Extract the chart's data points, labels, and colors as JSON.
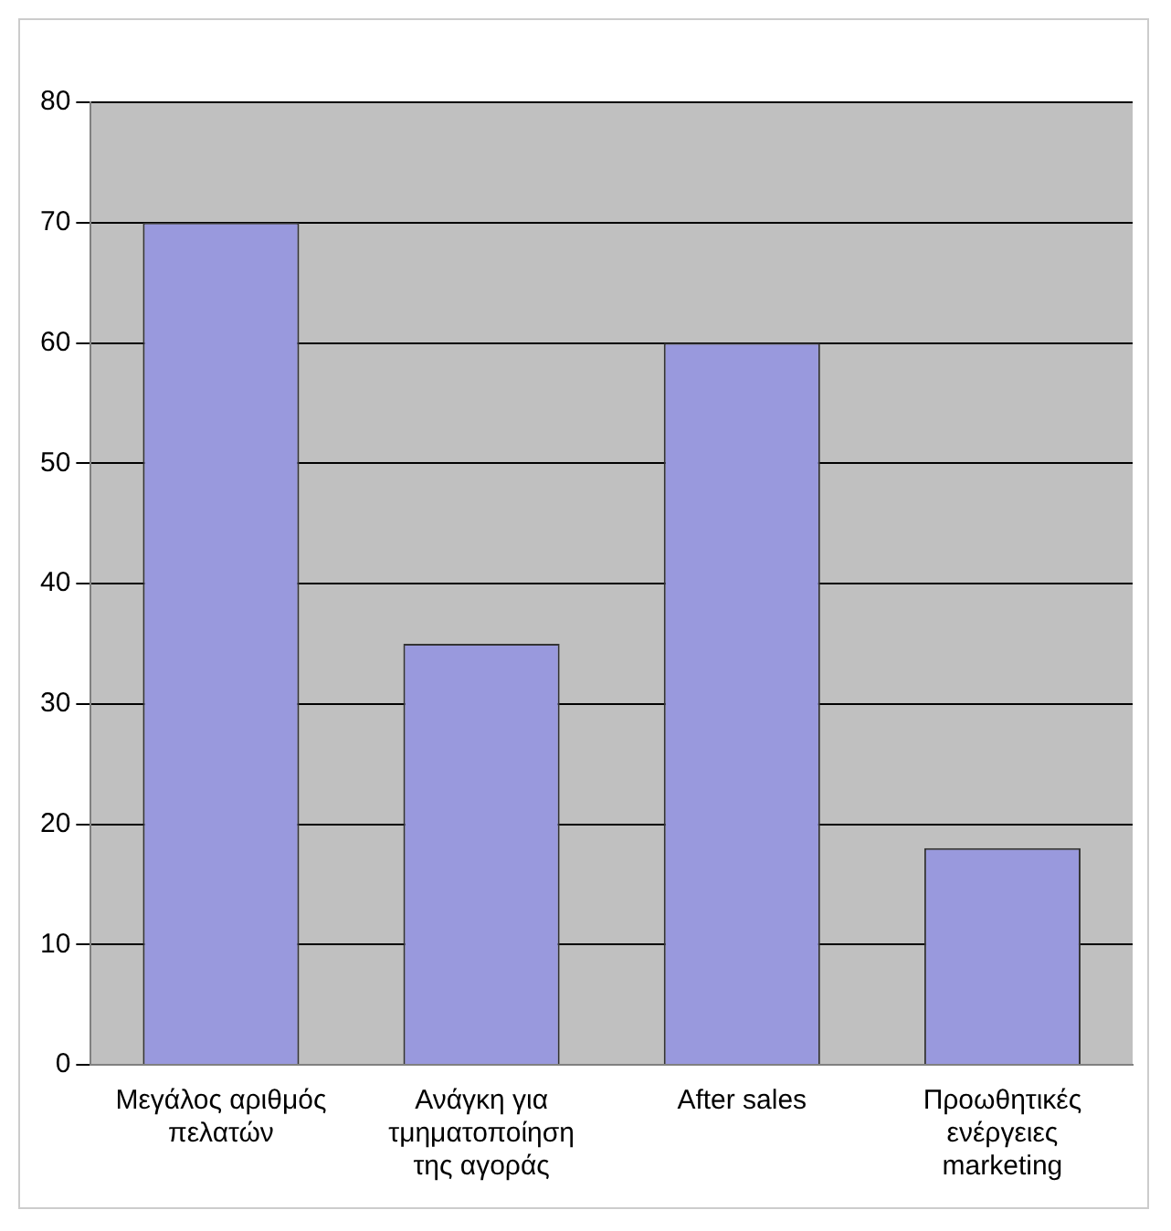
{
  "chart_data": {
    "type": "bar",
    "categories": [
      "Μεγάλος αριθμός πελατών",
      "Ανάγκη για τμηματοποίηση της αγοράς",
      "After sales",
      "Προωθητικές ενέργειες marketing"
    ],
    "values": [
      70,
      35,
      60,
      18
    ],
    "color": "#9999dd",
    "ylim": [
      0,
      80
    ],
    "yticks": [
      0,
      10,
      20,
      30,
      40,
      50,
      60,
      70,
      80
    ],
    "grid": "y",
    "legend": false
  }
}
